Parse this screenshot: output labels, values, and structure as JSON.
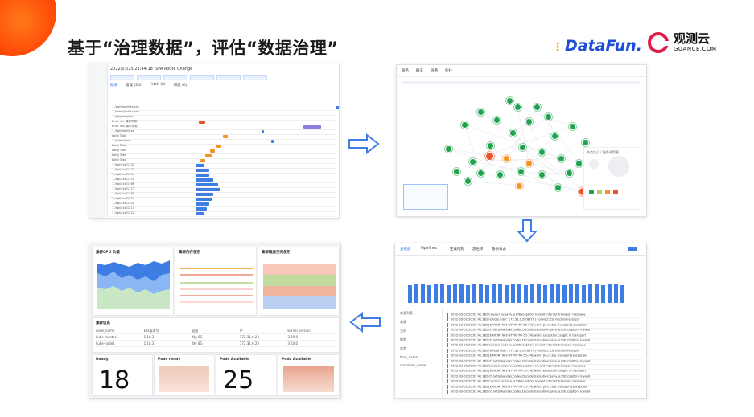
{
  "header": {
    "title": "基于“治理数据”，评估“数据治理”",
    "logo_datafun": "DataFun.",
    "logo_guance_cn": "观测云",
    "logo_guance_en": "GUANCE.COM"
  },
  "colors": {
    "accent": "#3d7de4",
    "orange": "#f29425",
    "green": "#22a150",
    "red": "#e5542c",
    "brand_orange": "#ff5a00"
  },
  "trace_panel": {
    "timestamp": "2022/03/25 21:44:18",
    "title": "SPA Route Change",
    "tabs": [
      "概要",
      "错误 (25)",
      "Fetch (0)",
      "日志 (0)"
    ],
    "spans": [
      "1 /api/front/biz/xxx",
      "1 /users/public/xxx",
      "1 /api/user/xxx",
      "Error xhr 请求失败",
      "Error xxx 请求失败",
      "1 /api/front/xxx",
      "Long Task",
      "1 /users/xxx",
      "Long Task",
      "Long Task",
      "Long Task",
      "Long Task",
      "1 /api/xxx/1122",
      "1 /api/xxx/1133",
      "1 /api/xxx/1144",
      "1 /api/xxx/1155",
      "1 /api/xxx/1166",
      "1 /api/xxx/1177",
      "1 /api/xxx/1188",
      "1 /api/xxx/1199",
      "1 /api/xxx/1200",
      "1 /api/xxx/1211",
      "1 /api/xxx/1222"
    ]
  },
  "graph_panel": {
    "tabs": [
      "服务",
      "概览",
      "链路",
      "拓扑"
    ],
    "legend_title": "节点大小 / 服务调用量"
  },
  "log_panel": {
    "tabs": [
      "查看器",
      "Pipelines",
      "生成指标",
      "黑名单",
      "备份日志"
    ],
    "nav": [
      "来源列表",
      "来源",
      "主机",
      "服务",
      "状态",
      "host_name",
      "container_name"
    ],
    "rows": [
      "2022-03-02 20:03:41.182  Caused by: java.io.IOException: Invalid Internet transport message",
      "2022-03-02 20:03:41.182  remote addr: 172.31.0.28:6379 | connect: connection refused",
      "2022-03-02 20:03:41.182  [ERROR] Net-NTTPC-TO-51-24] warn: [io.c.r.tcp.transport] exception",
      "2022-03-02 20:03:41.182  ch.netty.handler.codec.DecoderException: java.io.IOException: Invalid",
      "2022-03-02 20:03:41.182  [ERROR] Net-NTTPC-TO-51-24] warn: exception caught in transport",
      "2022-03-02 20:03:41.182  ch.netty.handler.codec.DecoderException: java.io.IOException: Invalid",
      "2022-03-02 20:03:41.182  Caused by: java.io.IOException: Invalid Internet transport message",
      "2022-03-02 20:03:41.182  remote addr: 172.31.0.28:6379 | connect: connection refused",
      "2022-03-02 20:03:41.182  [ERROR] Net-NTTPC-TO-51-24] warn: [io.c.r.tcp.transport] exception",
      "2022-03-02 20:03:41.182  ch.netty.handler.codec.DecoderException: java.io.IOException: Invalid",
      "2022-03-02 20:03:41.182  Caused by: java.io.IOException: Invalid Internet transport message",
      "2022-03-02 20:03:41.182  [ERROR] Net-NTTPC-TO-51-24] warn: exception caught in transport",
      "2022-03-02 20:03:41.182  ch.netty.handler.codec.DecoderException: java.io.IOException: Invalid",
      "2022-03-02 20:03:41.182  Caused by: java.io.IOException: Invalid Internet transport message",
      "2022-03-02 20:03:41.182  [ERROR] Net-NTTPC-TO-51-24] warn: [io.c.r.tcp.transport] exception",
      "2022-03-02 20:03:41.182  ch.netty.handler.codec.DecoderException: java.io.IOException: Invalid"
    ]
  },
  "dashboard_panel": {
    "charts": [
      "集群CPU 负载",
      "集群内存使用",
      "集群磁盘空间使用"
    ],
    "table_title": "集群信息",
    "table_cols": [
      "node_name",
      "k8s版本号",
      "容量",
      "IP",
      "kernel version"
    ],
    "table_rows": [
      [
        "kube-master1",
        "1.18.3",
        "4核 8G",
        "172.31.0.24",
        "3.10.0"
      ],
      [
        "kube-node1",
        "1.18.3",
        "4核 8G",
        "172.31.0.25",
        "3.10.0"
      ]
    ],
    "stats": [
      {
        "label": "Ready",
        "value": "18"
      },
      {
        "label": "Pods ready",
        "value": ""
      },
      {
        "label": "Pods Available",
        "value": "25"
      },
      {
        "label": "Pods Available",
        "value": ""
      }
    ]
  }
}
